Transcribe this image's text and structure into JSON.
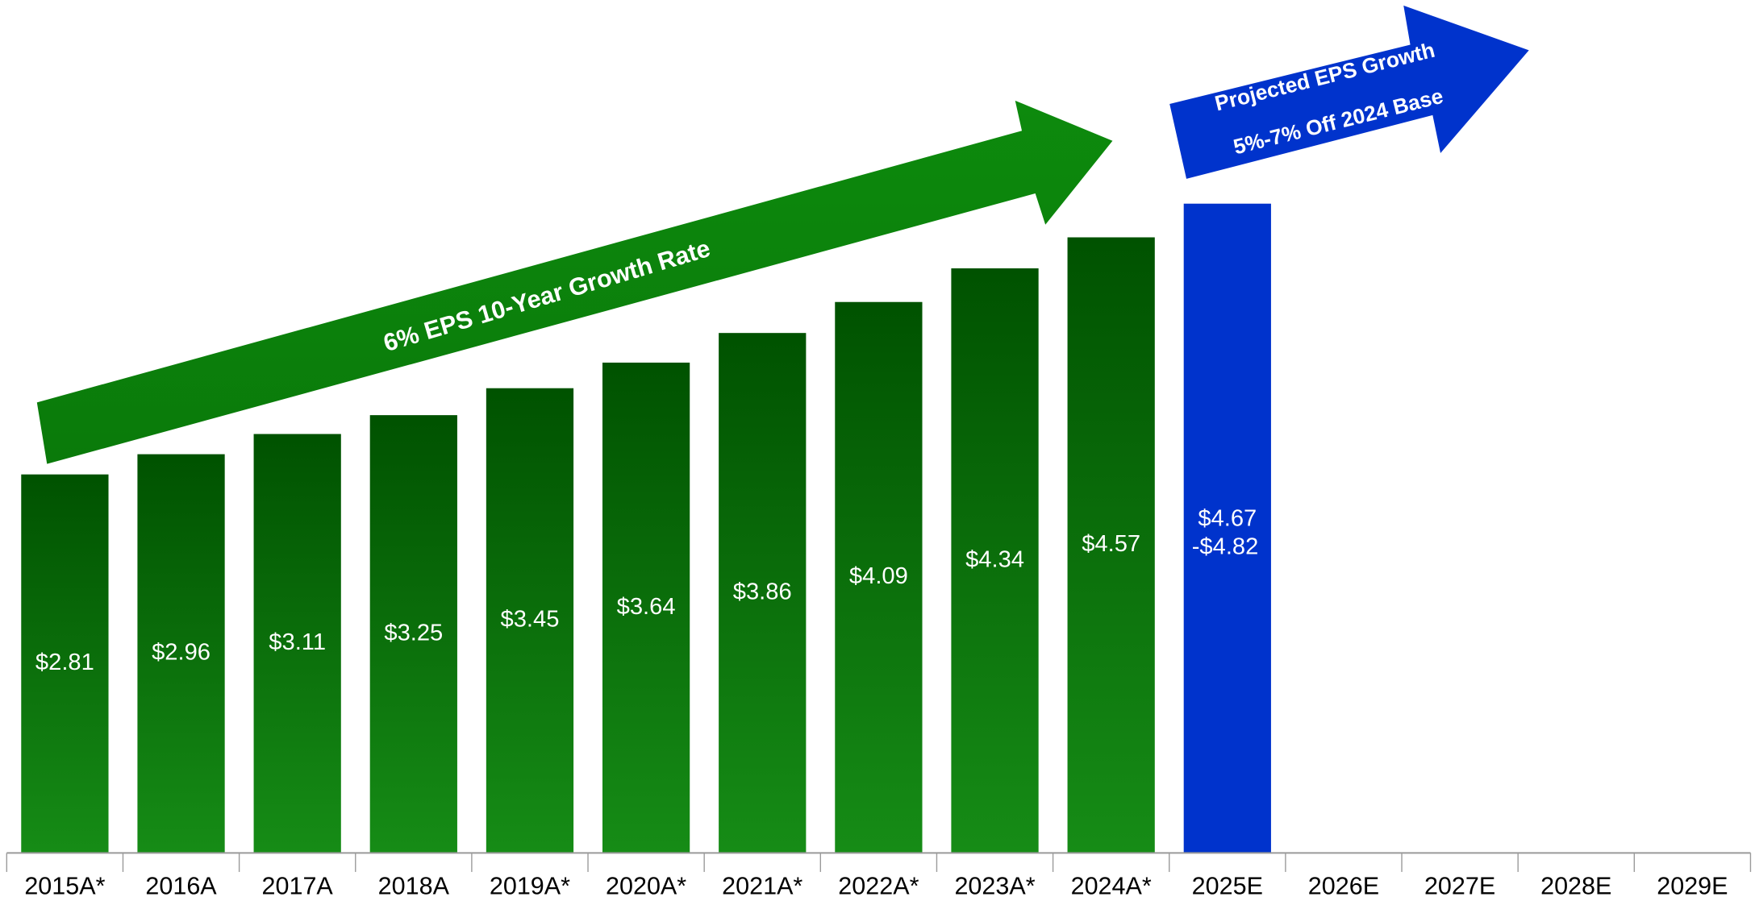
{
  "chart_data": {
    "type": "bar",
    "categories": [
      "2015A*",
      "2016A",
      "2017A",
      "2018A",
      "2019A*",
      "2020A*",
      "2021A*",
      "2022A*",
      "2023A*",
      "2024A*",
      "2025E",
      "2026E",
      "2027E",
      "2028E",
      "2029E"
    ],
    "values": [
      2.81,
      2.96,
      3.11,
      3.25,
      3.45,
      3.64,
      3.86,
      4.09,
      4.34,
      4.57,
      4.82,
      null,
      null,
      null,
      null
    ],
    "value_labels": [
      "$2.81",
      "$2.96",
      "$3.11",
      "$3.25",
      "$3.45",
      "$3.64",
      "$3.86",
      "$4.09",
      "$4.34",
      "$4.57",
      "-$4.82",
      null,
      null,
      null,
      null
    ],
    "low_values": [
      null,
      null,
      null,
      null,
      null,
      null,
      null,
      null,
      null,
      null,
      4.67,
      null,
      null,
      null,
      null
    ],
    "low_value_labels": [
      null,
      null,
      null,
      null,
      null,
      null,
      null,
      null,
      null,
      null,
      "$4.67",
      null,
      null,
      null,
      null
    ],
    "colors": [
      "green",
      "green",
      "green",
      "green",
      "green",
      "green",
      "green",
      "green",
      "green",
      "green",
      "#0033cc",
      null,
      null,
      null,
      null
    ],
    "annotations": {
      "historical": "6% EPS 10-Year Growth Rate",
      "projected": [
        "Projected EPS Growth",
        "5%-7% Off 2024 Base"
      ]
    }
  }
}
